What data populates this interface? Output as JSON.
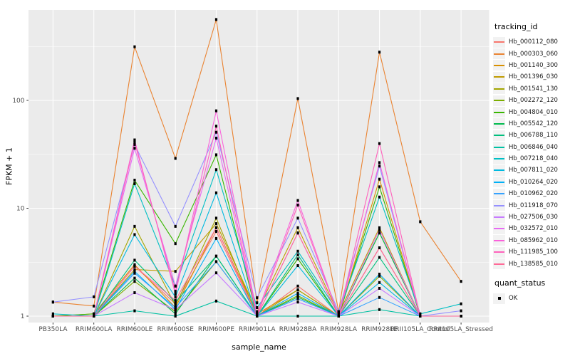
{
  "chart_data": {
    "type": "line",
    "title": "",
    "xlabel": "sample_name",
    "ylabel": "FPKM + 1",
    "y_scale": "log10",
    "y_ticks": [
      1,
      10,
      100
    ],
    "y_minor_ticks": [
      3.162,
      31.62,
      316.2
    ],
    "ylim": [
      0.93,
      690
    ],
    "grid": "on",
    "legend_position": "right",
    "panel_background": "#ebebeb",
    "gridline_color": "#ffffff",
    "tick_label_color": "#4d4d4d",
    "point_marker": {
      "shape": "square",
      "color": "#000000"
    },
    "categories": [
      "PB350LA",
      "RRIM600LA",
      "RRIM600LE",
      "RRIM600SE",
      "RRIM600PE",
      "RRIM901LA",
      "RRIM928BA",
      "RRIM928LA",
      "RRIM928LE",
      "RRII105LA_Control",
      "RRII105LA_Stressed"
    ],
    "series": [
      {
        "name": "Hb_000112_080",
        "color": "#F8766D",
        "values": [
          1.0,
          1.0,
          2.9,
          1.3,
          6.1,
          1.0,
          1.9,
          1.0,
          4.3,
          1.0,
          1.0
        ]
      },
      {
        "name": "Hb_000303_060",
        "color": "#EA8331",
        "values": [
          1.35,
          1.24,
          314,
          29,
          562,
          1.33,
          104,
          1.1,
          280,
          7.5,
          2.1
        ]
      },
      {
        "name": "Hb_001140_300",
        "color": "#D89000",
        "values": [
          1.0,
          1.05,
          3.0,
          1.2,
          6.6,
          1.05,
          1.75,
          1.0,
          18.6,
          1.0,
          1.0
        ]
      },
      {
        "name": "Hb_001396_030",
        "color": "#C09B00",
        "values": [
          1.0,
          1.0,
          2.7,
          2.6,
          7.2,
          1.1,
          6.6,
          1.05,
          6.6,
          1.0,
          1.0
        ]
      },
      {
        "name": "Hb_001541_130",
        "color": "#A3A500",
        "values": [
          1.0,
          1.0,
          6.8,
          1.25,
          8.1,
          1.0,
          1.75,
          1.0,
          5.9,
          1.0,
          1.0
        ]
      },
      {
        "name": "Hb_002272_120",
        "color": "#7CAE00",
        "values": [
          1.0,
          1.0,
          2.1,
          1.1,
          3.2,
          1.0,
          1.55,
          1.0,
          2.35,
          1.0,
          1.0
        ]
      },
      {
        "name": "Hb_004804_010",
        "color": "#39B600",
        "values": [
          1.0,
          1.05,
          18.2,
          4.7,
          31.3,
          1.0,
          3.4,
          1.0,
          15.8,
          1.0,
          1.0
        ]
      },
      {
        "name": "Hb_005542_120",
        "color": "#00BB4E",
        "values": [
          1.0,
          1.0,
          2.25,
          1.05,
          3.6,
          1.0,
          1.5,
          1.0,
          5.9,
          1.0,
          1.0
        ]
      },
      {
        "name": "Hb_006788_110",
        "color": "#00BF7D",
        "values": [
          1.0,
          1.0,
          3.3,
          1.35,
          3.6,
          1.0,
          3.7,
          1.0,
          3.5,
          1.0,
          1.0
        ]
      },
      {
        "name": "Hb_006846_040",
        "color": "#00C1A3",
        "values": [
          1.0,
          1.0,
          1.12,
          1.0,
          1.38,
          1.0,
          1.0,
          1.0,
          1.15,
          1.0,
          1.0
        ]
      },
      {
        "name": "Hb_007218_040",
        "color": "#00BFC4",
        "values": [
          1.05,
          1.0,
          16.9,
          1.9,
          22.8,
          1.2,
          4.0,
          1.07,
          12.7,
          1.05,
          1.3
        ]
      },
      {
        "name": "Hb_007811_020",
        "color": "#00BAE0",
        "values": [
          1.0,
          1.0,
          5.7,
          1.5,
          13.9,
          1.0,
          2.94,
          1.0,
          2.05,
          1.0,
          1.0
        ]
      },
      {
        "name": "Hb_010264_020",
        "color": "#00B0F6",
        "values": [
          1.0,
          1.0,
          2.6,
          1.15,
          5.25,
          1.0,
          1.63,
          1.0,
          2.45,
          1.0,
          1.0
        ]
      },
      {
        "name": "Hb_010962_020",
        "color": "#35A2FF",
        "values": [
          1.0,
          1.0,
          2.5,
          1.2,
          3.2,
          1.0,
          1.45,
          1.0,
          1.49,
          1.0,
          1.0
        ]
      },
      {
        "name": "Hb_011918_070",
        "color": "#9590FF",
        "values": [
          1.35,
          1.51,
          39,
          6.8,
          50.7,
          1.48,
          8.1,
          1.1,
          24.6,
          1.0,
          1.12
        ]
      },
      {
        "name": "Hb_027506_030",
        "color": "#C77CFF",
        "values": [
          1.0,
          1.0,
          1.65,
          1.15,
          2.52,
          1.0,
          1.35,
          1.0,
          1.81,
          1.0,
          1.0
        ]
      },
      {
        "name": "Hb_032572_010",
        "color": "#E76BF3",
        "values": [
          1.0,
          1.0,
          36,
          1.9,
          44.7,
          1.0,
          5.9,
          1.0,
          6.3,
          1.0,
          1.0
        ]
      },
      {
        "name": "Hb_085962_010",
        "color": "#FA62DB",
        "values": [
          1.0,
          1.0,
          43,
          1.6,
          80,
          1.05,
          11.8,
          1.0,
          26.5,
          1.0,
          1.0
        ]
      },
      {
        "name": "Hb_111985_100",
        "color": "#FF62BC",
        "values": [
          1.0,
          1.0,
          41,
          1.7,
          57.7,
          1.0,
          10.7,
          1.0,
          39.8,
          1.0,
          1.0
        ]
      },
      {
        "name": "Hb_138585_010",
        "color": "#FF6A98",
        "values": [
          1.0,
          1.0,
          2.9,
          1.4,
          6.6,
          1.0,
          5.9,
          1.0,
          4.3,
          1.0,
          1.0
        ]
      }
    ],
    "legend": {
      "tracking_title": "tracking_id",
      "quant_title": "quant_status",
      "quant_items": [
        {
          "label": "OK",
          "shape": "square",
          "color": "#000000"
        }
      ]
    }
  }
}
